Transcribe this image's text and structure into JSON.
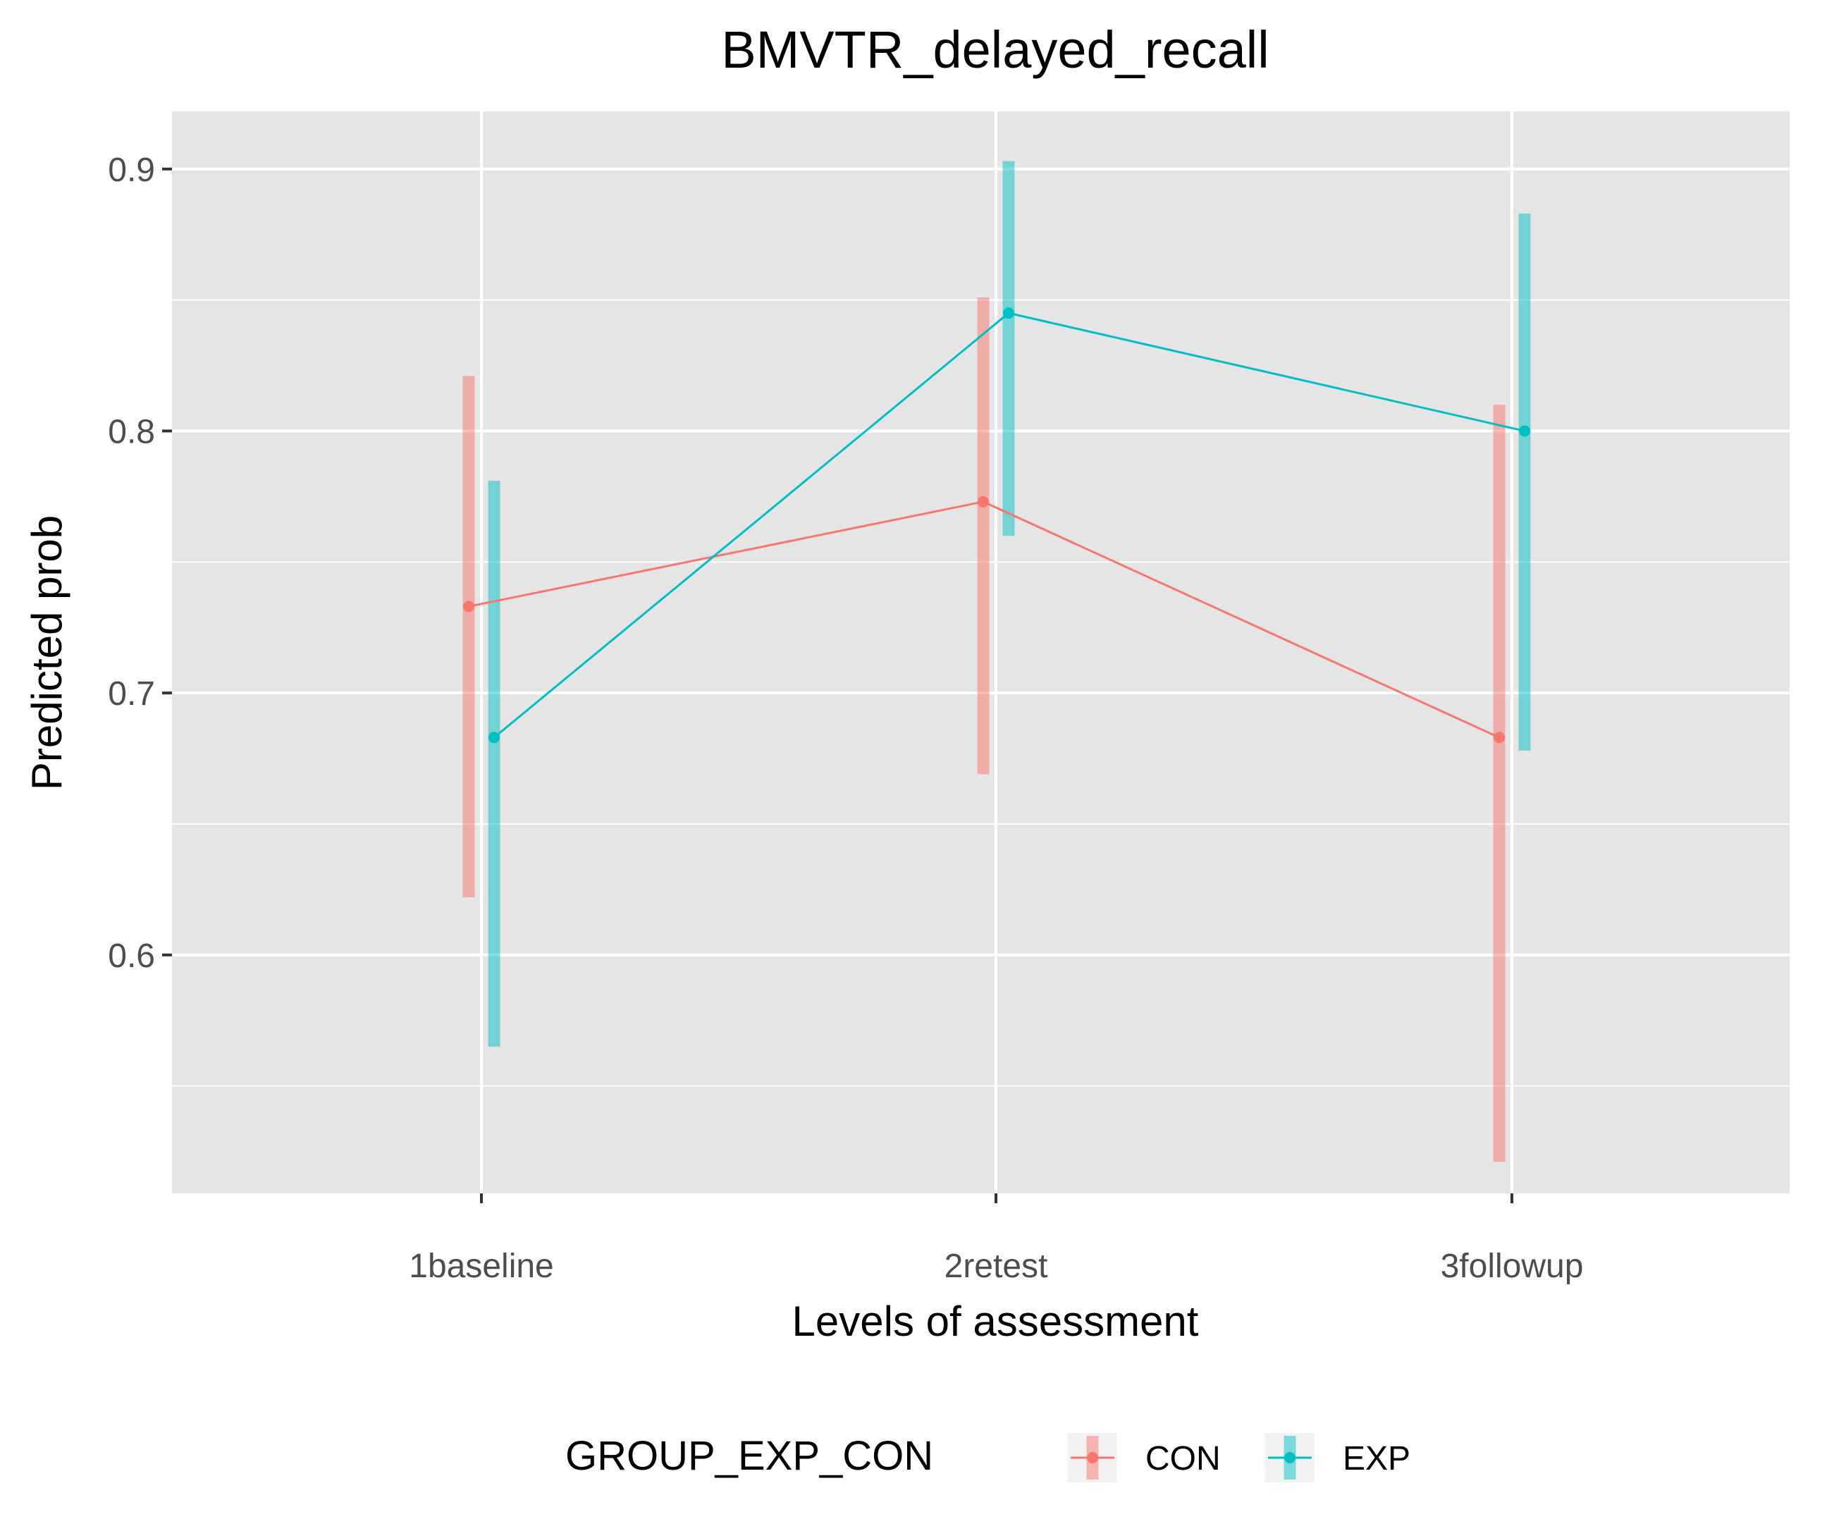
{
  "chart_data": {
    "type": "line",
    "title": "BMVTR_delayed_recall",
    "xlabel": "Levels of assessment",
    "ylabel": "Predicted prob",
    "categories": [
      "1baseline",
      "2retest",
      "3followup"
    ],
    "ylim": [
      0.509,
      0.922
    ],
    "y_ticks": [
      0.6,
      0.7,
      0.8,
      0.9
    ],
    "y_tick_labels": [
      "0.6",
      "0.7",
      "0.8",
      "0.9"
    ],
    "grid": true,
    "legend": {
      "title": "GROUP_EXP_CON",
      "position": "bottom"
    },
    "series": [
      {
        "name": "CON",
        "color": "#F8766D",
        "values": [
          0.733,
          0.773,
          0.683
        ],
        "lower": [
          0.622,
          0.669,
          0.521
        ],
        "upper": [
          0.821,
          0.851,
          0.81
        ]
      },
      {
        "name": "EXP",
        "color": "#00BFC4",
        "values": [
          0.683,
          0.845,
          0.8
        ],
        "lower": [
          0.565,
          0.76,
          0.678
        ],
        "upper": [
          0.781,
          0.903,
          0.883
        ]
      }
    ],
    "panel_background": "#E5E5E5",
    "grid_color": "#FFFFFF"
  }
}
